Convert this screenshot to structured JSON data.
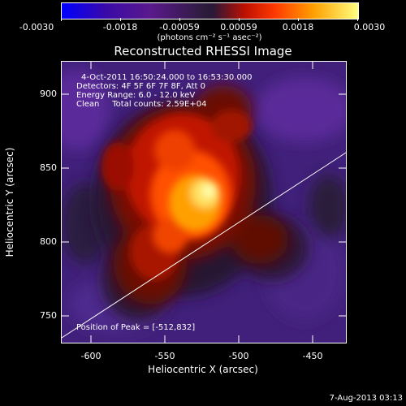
{
  "colorbar": {
    "tick_labels": [
      "-0.0030",
      "-0.0018",
      "-0.00059",
      "0.00059",
      "0.0018",
      "0.0030"
    ],
    "units_label": "(photons cm⁻² s⁻¹ asec⁻²)"
  },
  "plot": {
    "title": "Reconstructed RHESSI Image",
    "info_lines": [
      "4-Oct-2011 16:50:24.000 to 16:53:30.000",
      "Detectors: 4F 5F 6F 7F 8F, Att 0",
      "Energy Range: 6.0 - 12.0 keV",
      "Clean     Total counts: 2.59E+04"
    ],
    "peak_text": "Position of Peak = [-512,832]",
    "xlabel": "Heliocentric X (arcsec)",
    "ylabel": "Heliocentric Y (arcsec)",
    "x_ticks": [
      "-600",
      "-550",
      "-500",
      "-450"
    ],
    "y_ticks": [
      "900",
      "850",
      "800",
      "750"
    ]
  },
  "footer": {
    "timestamp": "7-Aug-2013 03:13"
  },
  "chart_data": {
    "type": "heatmap",
    "title": "Reconstructed RHESSI Image",
    "xlabel": "Heliocentric X (arcsec)",
    "ylabel": "Heliocentric Y (arcsec)",
    "xlim": [
      -617,
      -425
    ],
    "ylim": [
      732,
      922
    ],
    "colorbar_range": [
      -0.003,
      0.003
    ],
    "peak": [
      -512,
      832
    ],
    "limb_line": {
      "x": [
        -617,
        -425
      ],
      "y": [
        736,
        860
      ]
    }
  }
}
